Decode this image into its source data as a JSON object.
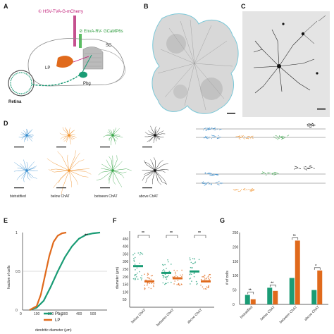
{
  "panels": {
    "A": {
      "label": "A",
      "virus1": "① HSV-TVA-G-mCherry",
      "virus2": "② EnvA-RV- GCaMP6s",
      "sc": "SC",
      "lp": "LP",
      "pbg": "Pbg",
      "retina": "Retina"
    },
    "B": {
      "label": "B"
    },
    "C": {
      "label": "C"
    },
    "D": {
      "label": "D",
      "types": [
        "bistratified",
        "below ChAT",
        "between ChAT",
        "above ChAT"
      ],
      "colors": [
        "#3a8fd0",
        "#f0922c",
        "#3aa64a",
        "#111111"
      ]
    },
    "E": {
      "label": "E"
    },
    "F": {
      "label": "F"
    },
    "G": {
      "label": "G"
    }
  },
  "colors": {
    "pbg": "#1a9c75",
    "lp": "#e06a1c"
  },
  "chart_data": [
    {
      "type": "line",
      "panel": "E",
      "xlabel": "dendritic diameter (μm)",
      "ylabel": "fraction of cells",
      "xlim": [
        0,
        600
      ],
      "ylim": [
        0,
        1
      ],
      "xticks": [
        0,
        100,
        200,
        300,
        400,
        500
      ],
      "yticks": [
        0,
        0.5,
        1
      ],
      "annotation": "**",
      "series": [
        {
          "name": "Pbg",
          "x": [
            50,
            100,
            150,
            200,
            250,
            300,
            350,
            400,
            450,
            500,
            550
          ],
          "y": [
            0,
            0.03,
            0.12,
            0.3,
            0.5,
            0.68,
            0.82,
            0.92,
            0.97,
            0.99,
            1.0
          ]
        },
        {
          "name": "LP",
          "x": [
            50,
            100,
            130,
            160,
            190,
            220,
            250,
            280,
            310
          ],
          "y": [
            0,
            0.05,
            0.2,
            0.45,
            0.7,
            0.88,
            0.96,
            0.99,
            1.0
          ]
        }
      ]
    },
    {
      "type": "scatter",
      "panel": "F",
      "ylabel": "diameter (μm)",
      "ylim": [
        0,
        500
      ],
      "yticks": [
        50,
        100,
        150,
        200,
        250,
        300,
        350,
        400,
        450
      ],
      "categories": [
        "below ChAT",
        "between ChAT",
        "above ChAT"
      ],
      "annotations": [
        "**",
        "**",
        "**"
      ],
      "series": [
        {
          "name": "Pbg",
          "medians": [
            270,
            225,
            235
          ]
        },
        {
          "name": "LP",
          "medians": [
            170,
            190,
            170
          ]
        }
      ]
    },
    {
      "type": "bar",
      "panel": "G",
      "ylabel": "# of cells",
      "ylim": [
        0,
        250
      ],
      "yticks": [
        0,
        50,
        100,
        150,
        200,
        250
      ],
      "categories": [
        "bistratified",
        "below ChAT",
        "between ChAT",
        "above ChAT"
      ],
      "annotations": [
        "**",
        "**",
        "**",
        "*"
      ],
      "series": [
        {
          "name": "Pbg",
          "values": [
            33,
            58,
            92,
            50
          ]
        },
        {
          "name": "LP",
          "values": [
            18,
            47,
            222,
            118
          ]
        }
      ]
    }
  ]
}
